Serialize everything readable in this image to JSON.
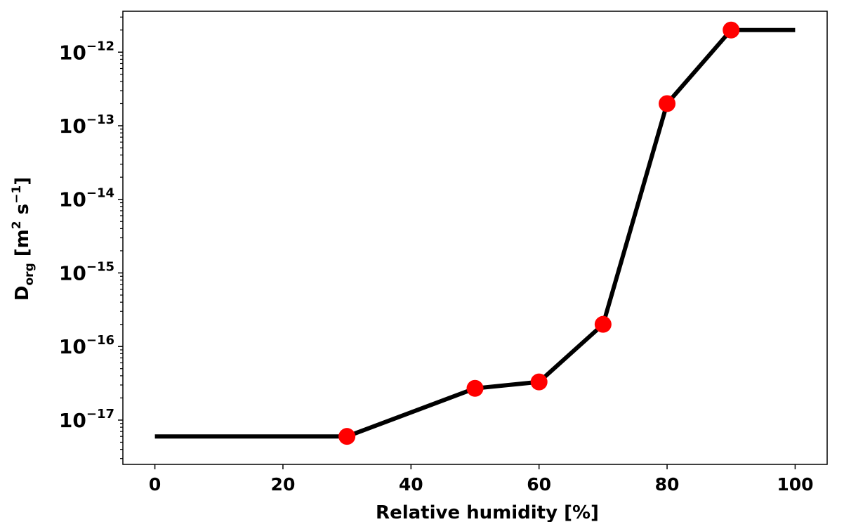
{
  "chart_data": {
    "type": "line",
    "xlabel": "Relative humidity [%]",
    "ylabel": {
      "main": "D",
      "sub": "org",
      "rest": " [m",
      "sup1": "2",
      "mid": " s",
      "sup2": "−1",
      "end": "]"
    },
    "yscale": "log",
    "xlim": [
      -5,
      105
    ],
    "ylim": [
      2.5e-18,
      3.6e-12
    ],
    "x_ticks": [
      0,
      20,
      40,
      60,
      80,
      100
    ],
    "y_ticks": [
      {
        "value": 1e-17,
        "base": "10",
        "exp": "−17"
      },
      {
        "value": 1e-16,
        "base": "10",
        "exp": "−16"
      },
      {
        "value": 1e-15,
        "base": "10",
        "exp": "−15"
      },
      {
        "value": 1e-14,
        "base": "10",
        "exp": "−14"
      },
      {
        "value": 1e-13,
        "base": "10",
        "exp": "−13"
      },
      {
        "value": 1e-12,
        "base": "10",
        "exp": "−12"
      }
    ],
    "series": [
      {
        "style": "line",
        "color": "#000000",
        "x": [
          0,
          30,
          50,
          60,
          70,
          80,
          90,
          100
        ],
        "y": [
          6e-18,
          6e-18,
          2.7e-17,
          3.3e-17,
          2e-16,
          2e-13,
          2e-12,
          2e-12
        ]
      },
      {
        "style": "markers",
        "color": "#ff0000",
        "x": [
          30,
          50,
          60,
          70,
          80,
          90
        ],
        "y": [
          6e-18,
          2.7e-17,
          3.3e-17,
          2e-16,
          2e-13,
          2e-12
        ]
      }
    ],
    "grid": false,
    "legend": "none"
  }
}
